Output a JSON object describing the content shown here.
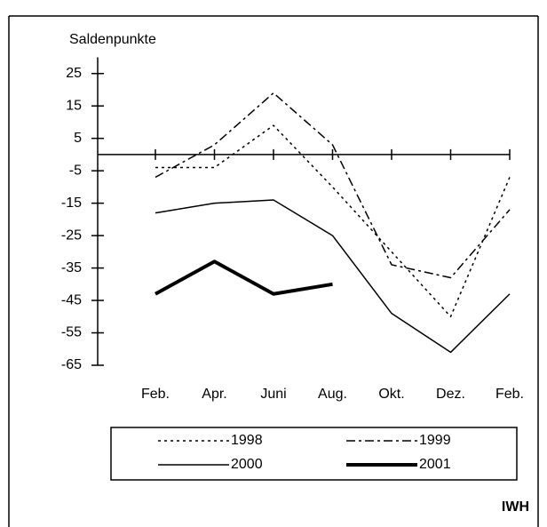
{
  "chart_data": {
    "type": "line",
    "y_label": "Saldenpunkte",
    "source": "IWH",
    "categories": [
      "Feb.",
      "Apr.",
      "Juni",
      "Aug.",
      "Okt.",
      "Dez.",
      "Feb."
    ],
    "ylim": [
      -65,
      30
    ],
    "yticks": [
      25,
      15,
      5,
      -5,
      -15,
      -25,
      -35,
      -45,
      -55,
      -65
    ],
    "series": [
      {
        "name": "1998",
        "color": "#000000",
        "dash": "3,4",
        "width": 1.5,
        "values": [
          -4,
          -4,
          9,
          -10,
          -30,
          -50,
          -7
        ]
      },
      {
        "name": "1999",
        "color": "#000000",
        "dash": "10,4,3,4",
        "width": 1.5,
        "values": [
          -7,
          3,
          19,
          3,
          -34,
          -38,
          -17
        ]
      },
      {
        "name": "2000",
        "color": "#000000",
        "dash": "none",
        "width": 1.5,
        "values": [
          -18,
          -15,
          -14,
          -25,
          -49,
          -61,
          -43
        ]
      },
      {
        "name": "2001",
        "color": "#000000",
        "dash": "none",
        "width": 4,
        "values": [
          -43,
          -33,
          -43,
          -40,
          null,
          null,
          null
        ]
      }
    ]
  }
}
